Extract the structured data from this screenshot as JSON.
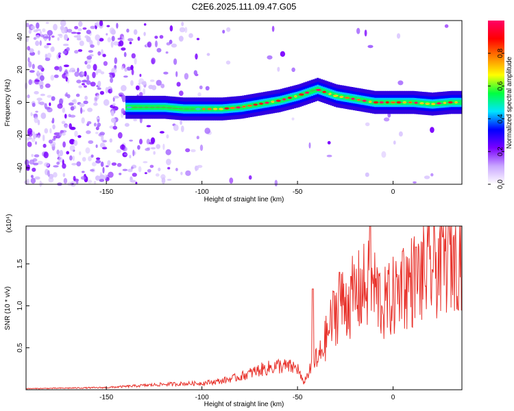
{
  "title": "C2E6.2025.111.09.47.G05",
  "chart_data": [
    {
      "type": "heatmap",
      "xlabel": "Height of straight line (km)",
      "ylabel": "Frequency (Hz)",
      "xlim": [
        -192,
        36
      ],
      "ylim": [
        -50,
        50
      ],
      "x_ticks": [
        -150,
        -100,
        -50,
        0
      ],
      "y_ticks": [
        -40,
        -20,
        0,
        20,
        40
      ],
      "colorbar": {
        "label": "Normalized spectral amplitude",
        "range": [
          0,
          1
        ],
        "ticks": [
          0.0,
          0.2,
          0.4,
          0.6,
          0.8
        ],
        "colors": [
          "#ffffff",
          "#c9a6ff",
          "#7a00ff",
          "#0000ff",
          "#00e5ff",
          "#00ff40",
          "#ffff00",
          "#ff8000",
          "#ff0000",
          "#ff0066"
        ]
      },
      "ridge": {
        "x": [
          -140,
          -130,
          -120,
          -110,
          -100,
          -90,
          -80,
          -70,
          -60,
          -50,
          -40,
          -35,
          -30,
          -20,
          -10,
          0,
          10,
          20,
          30,
          35
        ],
        "y": [
          -3,
          -3,
          -3,
          -4,
          -4,
          -4,
          -3,
          -1,
          1,
          4,
          8,
          6,
          4,
          2,
          0,
          0,
          0,
          -1,
          0,
          0
        ]
      }
    },
    {
      "type": "line",
      "xlabel": "Height of straight line (km)",
      "ylabel": "SNR (10 * v/v)",
      "y_multiplier": "(x10⁴)",
      "xlim": [
        -192,
        36
      ],
      "ylim": [
        0,
        1.95
      ],
      "x_ticks": [
        -150,
        -100,
        -50,
        0
      ],
      "y_ticks": [
        0.5,
        1.0,
        1.5
      ],
      "color": "#e8312a",
      "envelope": {
        "x": [
          -192,
          -150,
          -130,
          -120,
          -100,
          -90,
          -80,
          -70,
          -60,
          -50,
          -47,
          -40,
          -35,
          -30,
          -25,
          -20,
          -15,
          -12,
          -10,
          -5,
          0,
          5,
          10,
          15,
          20,
          25,
          30,
          36
        ],
        "y": [
          0.01,
          0.02,
          0.04,
          0.05,
          0.06,
          0.08,
          0.12,
          0.18,
          0.22,
          0.2,
          0.06,
          0.3,
          0.62,
          0.95,
          1.05,
          1.12,
          1.22,
          1.25,
          1.22,
          1.0,
          1.1,
          1.25,
          1.3,
          1.35,
          1.45,
          1.55,
          1.65,
          1.72
        ]
      },
      "peaks": [
        {
          "x": -42,
          "y": 1.2
        },
        {
          "x": -28,
          "y": 1.4
        },
        {
          "x": -22,
          "y": 1.35
        },
        {
          "x": -12,
          "y": 1.95
        },
        {
          "x": 5,
          "y": 1.65
        },
        {
          "x": 12,
          "y": 1.7
        },
        {
          "x": 26,
          "y": 1.82
        }
      ]
    }
  ]
}
